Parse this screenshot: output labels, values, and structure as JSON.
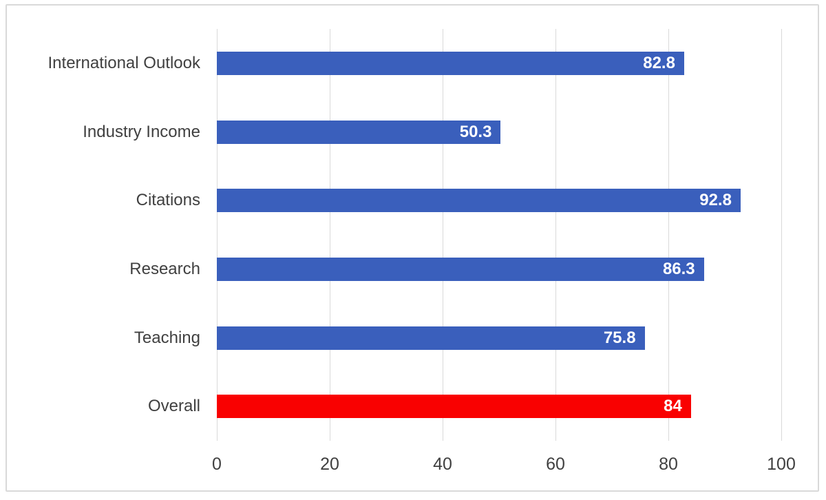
{
  "chart_data": {
    "type": "bar",
    "orientation": "horizontal",
    "categories": [
      "International Outlook",
      "Industry Income",
      "Citations",
      "Research",
      "Teaching",
      "Overall"
    ],
    "values": [
      82.8,
      50.3,
      92.8,
      86.3,
      75.8,
      84
    ],
    "value_labels": [
      "82.8",
      "50.3",
      "92.8",
      "86.3",
      "75.8",
      "84"
    ],
    "bar_colors": [
      "#3a5fbc",
      "#3a5fbc",
      "#3a5fbc",
      "#3a5fbc",
      "#3a5fbc",
      "#f90101"
    ],
    "xticks": [
      0,
      20,
      40,
      60,
      80,
      100
    ],
    "xlim": [
      0,
      100
    ],
    "grid": "vertical",
    "legend": "none",
    "title": "",
    "xlabel": "",
    "ylabel": ""
  },
  "colors": {
    "bar_blue": "#3a5fbc",
    "bar_red": "#f90101",
    "gridline": "#d9d9d9",
    "frame_border": "#d9d9d9",
    "axis_text": "#404040",
    "value_text": "#ffffff",
    "background": "#ffffff"
  }
}
